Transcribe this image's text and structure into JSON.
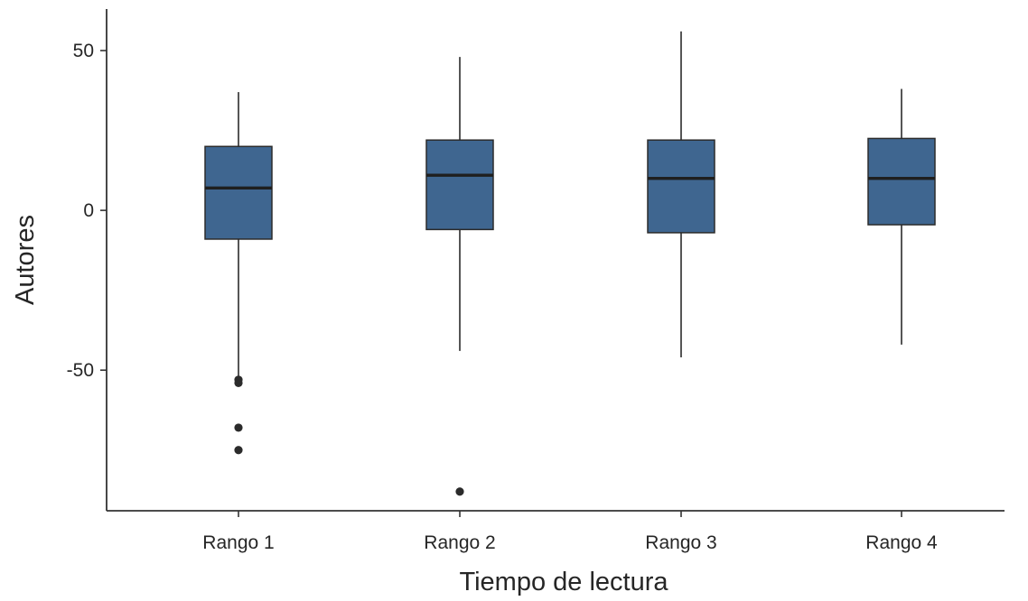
{
  "chart_data": {
    "type": "boxplot",
    "title": "",
    "xlabel": "Tiempo de lectura",
    "ylabel": "Autores",
    "categories": [
      "Rango 1",
      "Rango 2",
      "Rango 3",
      "Rango 4"
    ],
    "y_ticks": [
      -50,
      0,
      50
    ],
    "y_tick_labels": [
      "-50",
      "0",
      "50"
    ],
    "ylim": [
      -94,
      63
    ],
    "grid": false,
    "legend": "none",
    "colors": {
      "box_fill": "#3f6690",
      "box_stroke": "#2b2b2b",
      "median": "#1f1f1f",
      "whisker": "#2b2b2b",
      "outlier": "#2b2b2b",
      "axis": "#333333",
      "text": "#262626"
    },
    "boxes": [
      {
        "category": "Rango 1",
        "whisker_low": -52,
        "q1": -9,
        "median": 7,
        "q3": 20,
        "whisker_high": 37,
        "outliers": [
          -53,
          -54,
          -68,
          -75
        ]
      },
      {
        "category": "Rango 2",
        "whisker_low": -44,
        "q1": -6,
        "median": 11,
        "q3": 22,
        "whisker_high": 48,
        "outliers": [
          -88
        ]
      },
      {
        "category": "Rango 3",
        "whisker_low": -46,
        "q1": -7,
        "median": 10,
        "q3": 22,
        "whisker_high": 56,
        "outliers": []
      },
      {
        "category": "Rango 4",
        "whisker_low": -42,
        "q1": -4.5,
        "median": 10,
        "q3": 22.5,
        "whisker_high": 38,
        "outliers": []
      }
    ]
  }
}
